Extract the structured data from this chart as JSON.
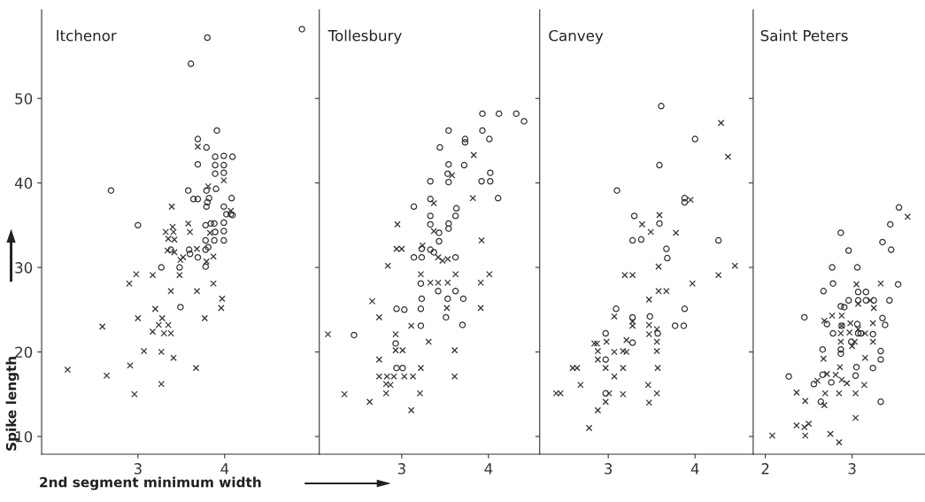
{
  "chart_data": [
    {
      "type": "scatter",
      "title": "Itchenor",
      "xlabel": "2nd segment minimum width",
      "ylabel": "Spike length",
      "xlim": [
        1.89,
        5.09
      ],
      "ylim": [
        7.9,
        60.5
      ],
      "xticks": [
        3,
        4
      ],
      "yticks": [
        10,
        20,
        30,
        40,
        50
      ],
      "grid": false,
      "series": [
        {
          "color": "#333333",
          "marker": "circle",
          "x": [
            4.89,
            3.8,
            3.61,
            3.91,
            3.69,
            3.79,
            3.89,
            3.99,
            4.09,
            3.69,
            3.89,
            3.99,
            3.89,
            3.99,
            2.69,
            3.58,
            3.79,
            3.9,
            3.64,
            3.69,
            3.82,
            3.8,
            4.08,
            3.79,
            3.99,
            4.02,
            4.07,
            4.09,
            3.99,
            3.0,
            3.78,
            3.84,
            3.88,
            3.89,
            3.99,
            3.78,
            3.88,
            3.99,
            3.38,
            3.59,
            3.6,
            3.78,
            3.81,
            3.69,
            3.48,
            3.27,
            3.78,
            3.49
          ],
          "values": [
            58.2,
            57.2,
            54.1,
            46.2,
            45.2,
            44.2,
            43.1,
            43.2,
            43.1,
            42.2,
            42.1,
            42.1,
            41.1,
            41.2,
            39.1,
            39.1,
            39.1,
            39.3,
            38.1,
            38.1,
            38.2,
            37.7,
            38.2,
            37.2,
            37.2,
            36.3,
            36.3,
            36.2,
            35.3,
            35.0,
            35.0,
            35.2,
            35.2,
            34.2,
            34.3,
            33.2,
            33.2,
            33.2,
            32.1,
            32.1,
            31.6,
            32.1,
            32.4,
            31.2,
            30.0,
            30.0,
            30.1,
            25.3
          ]
        },
        {
          "color": "#333333",
          "marker": "cross",
          "x": [
            3.69,
            3.81,
            3.99,
            3.39,
            4.07,
            3.58,
            3.4,
            3.32,
            3.6,
            3.41,
            3.35,
            3.42,
            3.83,
            3.34,
            3.42,
            3.68,
            3.49,
            3.52,
            3.79,
            3.87,
            2.98,
            3.17,
            3.48,
            2.9,
            3.38,
            3.68,
            3.87,
            3.97,
            3.96,
            3.0,
            3.2,
            3.28,
            3.77,
            2.59,
            3.24,
            3.35,
            3.17,
            3.3,
            3.38,
            3.07,
            3.27,
            3.41,
            2.19,
            2.91,
            3.67,
            2.64,
            3.27,
            2.96
          ],
          "values": [
            44.3,
            39.6,
            40.3,
            37.2,
            36.7,
            35.2,
            34.8,
            34.2,
            34.2,
            34.2,
            33.4,
            33.3,
            34.1,
            32.0,
            31.8,
            32.2,
            30.9,
            31.2,
            30.7,
            31.3,
            29.2,
            29.1,
            29.1,
            28.1,
            27.2,
            27.2,
            28.1,
            26.3,
            25.2,
            24.0,
            25.1,
            24.0,
            24.0,
            23.0,
            23.2,
            23.2,
            22.4,
            22.2,
            22.2,
            20.1,
            20.0,
            19.3,
            17.9,
            18.4,
            18.1,
            17.2,
            16.2,
            15.0
          ]
        }
      ]
    },
    {
      "type": "scatter",
      "title": "Tollesbury",
      "xlim": [
        2.05,
        4.59
      ],
      "ylim": [
        7.9,
        60.5
      ],
      "xticks": [
        3,
        4
      ],
      "yticks": [
        10,
        20,
        30,
        40,
        50
      ],
      "tick_labels": "x",
      "grid": false,
      "series": [
        {
          "color": "#333333",
          "marker": "circle",
          "x": [
            3.93,
            4.12,
            4.32,
            4.41,
            3.54,
            3.93,
            4.01,
            3.73,
            3.73,
            3.44,
            3.72,
            3.54,
            3.53,
            4.02,
            3.33,
            3.54,
            3.92,
            4.02,
            4.11,
            3.33,
            3.14,
            3.63,
            3.33,
            3.62,
            3.33,
            3.54,
            3.54,
            3.43,
            3.43,
            3.23,
            3.33,
            3.37,
            3.14,
            3.23,
            3.62,
            3.22,
            3.42,
            3.62,
            3.23,
            3.53,
            3.71,
            2.94,
            3.03,
            3.22,
            3.51,
            3.22,
            3.7,
            2.45,
            2.93,
            3.01,
            2.94
          ],
          "values": [
            48.2,
            48.2,
            48.2,
            47.3,
            46.2,
            46.2,
            45.2,
            45.2,
            44.8,
            44.2,
            42.1,
            42.2,
            41.1,
            41.2,
            40.2,
            40.1,
            40.2,
            40.2,
            38.2,
            38.1,
            37.2,
            37.0,
            36.1,
            36.1,
            35.1,
            35.2,
            34.6,
            34.1,
            33.1,
            32.2,
            32.1,
            31.8,
            31.2,
            31.2,
            31.2,
            28.1,
            27.2,
            27.2,
            26.3,
            26.3,
            26.3,
            25.1,
            25.0,
            25.1,
            24.1,
            23.1,
            23.2,
            22.0,
            21.0,
            18.1,
            18.1
          ]
        },
        {
          "color": "#333333",
          "marker": "cross",
          "x": [
            3.83,
            3.58,
            3.82,
            3.37,
            2.95,
            3.37,
            3.92,
            2.94,
            3.0,
            3.24,
            3.42,
            3.47,
            3.53,
            2.84,
            3.22,
            3.62,
            4.01,
            3.33,
            3.42,
            3.53,
            3.91,
            2.66,
            2.74,
            3.52,
            3.91,
            2.15,
            3.11,
            2.93,
            3.31,
            2.93,
            3.01,
            3.61,
            2.74,
            3.22,
            2.74,
            2.83,
            2.91,
            3.03,
            3.13,
            3.61,
            2.82,
            2.87,
            2.34,
            2.82,
            3.21,
            2.63,
            3.11
          ],
          "values": [
            43.3,
            40.9,
            38.2,
            37.6,
            35.1,
            34.3,
            33.2,
            32.2,
            32.2,
            32.6,
            31.2,
            30.8,
            31.0,
            30.2,
            29.2,
            29.2,
            29.2,
            28.2,
            28.2,
            28.2,
            28.2,
            26.0,
            24.1,
            25.2,
            25.2,
            22.1,
            23.1,
            22.1,
            21.2,
            20.2,
            20.2,
            20.2,
            19.1,
            18.1,
            17.1,
            17.1,
            17.1,
            17.1,
            17.1,
            17.1,
            16.2,
            16.1,
            15.0,
            15.1,
            15.1,
            14.1,
            13.1
          ]
        }
      ]
    },
    {
      "type": "scatter",
      "title": "Canvey",
      "xlim": [
        2.21,
        4.67
      ],
      "ylim": [
        7.9,
        60.5
      ],
      "xticks": [
        3,
        4
      ],
      "yticks": [
        10,
        20,
        30,
        40,
        50
      ],
      "tick_labels": "x",
      "grid": false,
      "series": [
        {
          "color": "#333333",
          "marker": "circle",
          "x": [
            3.61,
            4.0,
            3.59,
            3.1,
            3.88,
            3.88,
            3.3,
            3.59,
            3.28,
            3.38,
            4.27,
            3.67,
            3.68,
            3.09,
            3.88,
            3.28,
            3.48,
            3.77,
            3.87,
            3.57,
            2.97,
            3.28,
            2.97,
            2.97
          ],
          "values": [
            49.1,
            45.2,
            42.1,
            39.1,
            38.2,
            37.7,
            36.1,
            35.2,
            33.2,
            33.3,
            33.2,
            32.2,
            31.1,
            25.1,
            25.1,
            24.1,
            24.2,
            23.1,
            23.1,
            22.2,
            22.2,
            21.1,
            19.1,
            15.1
          ]
        },
        {
          "color": "#333333",
          "marker": "cross",
          "x": [
            4.3,
            4.38,
            3.95,
            3.59,
            3.39,
            3.49,
            3.78,
            3.58,
            4.46,
            3.19,
            3.28,
            4.27,
            3.97,
            3.58,
            3.67,
            3.47,
            3.07,
            3.28,
            3.28,
            3.47,
            3.56,
            2.84,
            2.87,
            2.98,
            3.21,
            3.47,
            3.56,
            2.88,
            3.07,
            3.17,
            3.21,
            3.56,
            2.88,
            2.97,
            3.17,
            2.59,
            2.64,
            3.57,
            3.07,
            2.68,
            3.46,
            2.4,
            2.45,
            3.01,
            3.17,
            3.56,
            2.97,
            3.47,
            2.88,
            2.78
          ],
          "values": [
            47.1,
            43.1,
            38.0,
            36.2,
            35.1,
            34.2,
            34.1,
            30.1,
            30.2,
            29.1,
            29.1,
            29.1,
            28.1,
            27.2,
            27.2,
            26.2,
            24.2,
            23.6,
            23.1,
            23.2,
            22.7,
            21.0,
            21.0,
            21.2,
            21.4,
            22.1,
            21.2,
            20.1,
            20.0,
            20.1,
            20.0,
            20.1,
            19.1,
            18.1,
            18.1,
            18.1,
            18.1,
            18.1,
            17.1,
            16.1,
            16.1,
            15.1,
            15.1,
            15.1,
            15.0,
            15.1,
            14.1,
            14.0,
            13.1,
            11.0
          ]
        }
      ]
    },
    {
      "type": "scatter",
      "title": "Saint Peters",
      "xlim": [
        1.86,
        3.84
      ],
      "ylim": [
        7.9,
        60.5
      ],
      "xticks": [
        2,
        3
      ],
      "yticks": [
        10,
        20,
        30,
        40,
        50
      ],
      "tick_labels": "x",
      "grid": false,
      "series": [
        {
          "color": "#333333",
          "marker": "circle",
          "x": [
            3.54,
            3.44,
            2.87,
            3.35,
            3.45,
            2.96,
            2.77,
            3.06,
            2.78,
            3.53,
            2.67,
            3.07,
            3.16,
            2.96,
            3.07,
            3.16,
            3.25,
            3.43,
            2.87,
            2.91,
            2.45,
            2.71,
            3.06,
            3.35,
            3.38,
            2.78,
            2.88,
            3.07,
            3.1,
            3.24,
            2.99,
            2.66,
            2.87,
            2.87,
            3.33,
            3.33,
            3.24,
            3.05,
            2.27,
            2.66,
            3.04,
            2.56,
            2.76,
            2.64,
            3.33
          ],
          "values": [
            37.1,
            35.1,
            34.1,
            33.0,
            32.1,
            32.0,
            30.0,
            30.0,
            28.1,
            28.0,
            27.2,
            27.1,
            27.1,
            26.1,
            26.1,
            26.1,
            26.1,
            26.1,
            25.4,
            25.3,
            24.1,
            23.3,
            23.3,
            24.0,
            23.2,
            22.2,
            23.1,
            22.2,
            22.2,
            22.1,
            21.2,
            20.3,
            20.3,
            19.8,
            20.1,
            19.1,
            18.1,
            18.2,
            17.1,
            17.3,
            17.2,
            16.2,
            16.4,
            14.1,
            14.1
          ]
        },
        {
          "color": "#333333",
          "marker": "cross",
          "x": [
            3.64,
            3.05,
            3.33,
            3.07,
            3.21,
            3.25,
            2.77,
            2.68,
            2.88,
            2.88,
            2.98,
            3.24,
            2.87,
            2.97,
            3.07,
            3.15,
            2.87,
            3.0,
            3.03,
            3.24,
            2.67,
            3.15,
            2.86,
            2.71,
            2.81,
            2.6,
            2.88,
            2.94,
            3.14,
            2.36,
            2.69,
            2.85,
            3.04,
            2.46,
            2.68,
            3.04,
            2.36,
            2.45,
            2.5,
            2.08,
            2.46,
            2.75,
            2.85
          ],
          "values": [
            36.0,
            28.0,
            28.1,
            25.7,
            26.1,
            25.2,
            24.3,
            23.7,
            24.3,
            23.1,
            23.4,
            23.4,
            22.2,
            22.3,
            22.7,
            22.2,
            21.2,
            20.7,
            21.2,
            21.2,
            19.2,
            19.3,
            18.2,
            17.4,
            17.3,
            16.6,
            16.7,
            16.3,
            16.1,
            15.2,
            15.1,
            15.1,
            15.1,
            14.2,
            13.7,
            12.2,
            11.3,
            11.1,
            11.5,
            10.1,
            10.1,
            10.3,
            9.3
          ]
        }
      ]
    }
  ]
}
